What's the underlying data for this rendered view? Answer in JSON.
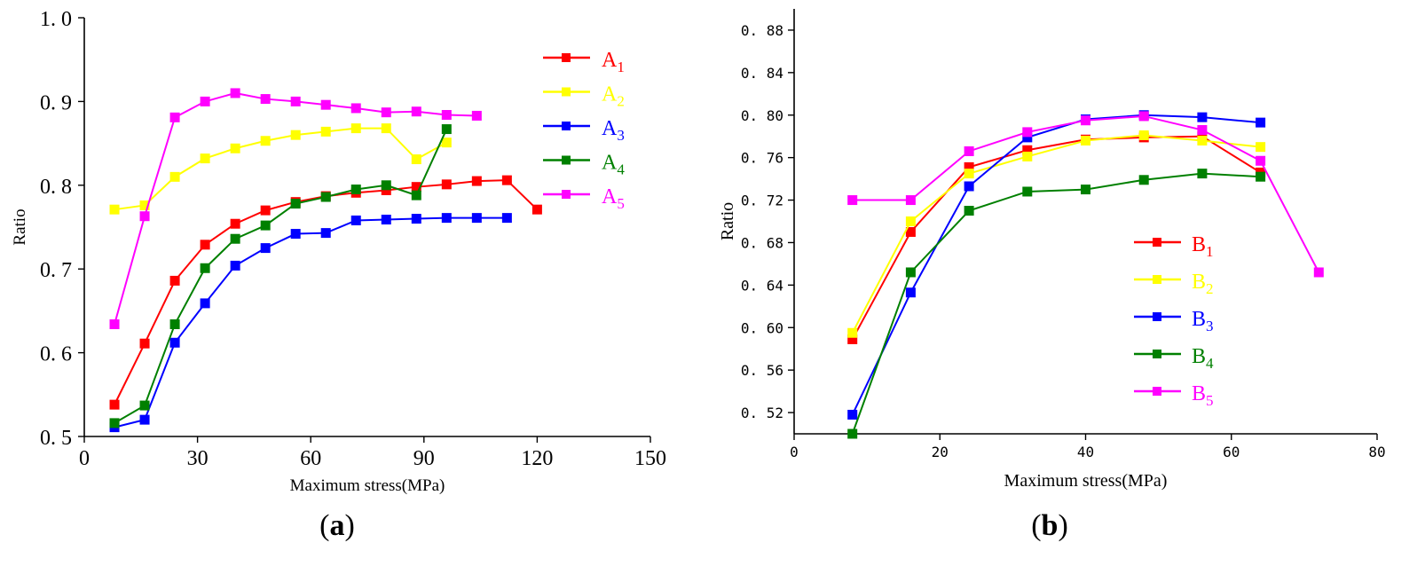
{
  "chart_data": [
    {
      "type": "line",
      "panel_label": "(a)",
      "panel_label_parts": {
        "open": "(",
        "letter": "a",
        "close": ")"
      },
      "xlabel": "Maximum stress(MPa)",
      "ylabel": "Ratio",
      "xlim": [
        0,
        150
      ],
      "ylim": [
        0.5,
        1.0
      ],
      "xticks": [
        0,
        30,
        60,
        90,
        120,
        150
      ],
      "xtick_labels": [
        "0",
        "30",
        "60",
        "90",
        "120",
        "150"
      ],
      "yticks": [
        0.5,
        0.6,
        0.7,
        0.8,
        0.9,
        1.0
      ],
      "ytick_labels": [
        "0. 5",
        "0. 6",
        "0. 7",
        "0. 8",
        "0. 9",
        "1. 0"
      ],
      "grid": false,
      "legend_position": "top-right",
      "series": [
        {
          "name": "A1",
          "label": "A",
          "sub": "1",
          "color": "#ff0000",
          "x": [
            8,
            16,
            24,
            32,
            40,
            48,
            56,
            64,
            72,
            80,
            88,
            96,
            104,
            112,
            120
          ],
          "y": [
            0.538,
            0.611,
            0.686,
            0.729,
            0.754,
            0.77,
            0.78,
            0.787,
            0.791,
            0.794,
            0.798,
            0.801,
            0.805,
            0.806,
            0.771
          ]
        },
        {
          "name": "A2",
          "label": "A",
          "sub": "2",
          "color": "#ffff00",
          "x": [
            8,
            16,
            24,
            32,
            40,
            48,
            56,
            64,
            72,
            80,
            88,
            96
          ],
          "y": [
            0.771,
            0.776,
            0.81,
            0.832,
            0.844,
            0.853,
            0.86,
            0.864,
            0.868,
            0.868,
            0.831,
            0.851
          ]
        },
        {
          "name": "A3",
          "label": "A",
          "sub": "3",
          "color": "#0000ff",
          "x": [
            8,
            16,
            24,
            32,
            40,
            48,
            56,
            64,
            72,
            80,
            88,
            96,
            104,
            112
          ],
          "y": [
            0.511,
            0.52,
            0.612,
            0.659,
            0.704,
            0.725,
            0.742,
            0.743,
            0.758,
            0.759,
            0.76,
            0.761,
            0.761,
            0.761
          ]
        },
        {
          "name": "A4",
          "label": "A",
          "sub": "4",
          "color": "#008000",
          "x": [
            8,
            16,
            24,
            32,
            40,
            48,
            56,
            64,
            72,
            80,
            88,
            96
          ],
          "y": [
            0.516,
            0.537,
            0.634,
            0.701,
            0.736,
            0.752,
            0.778,
            0.786,
            0.795,
            0.8,
            0.788,
            0.867
          ]
        },
        {
          "name": "A5",
          "label": "A",
          "sub": "5",
          "color": "#ff00ff",
          "x": [
            8,
            16,
            24,
            32,
            40,
            48,
            56,
            64,
            72,
            80,
            88,
            96,
            104
          ],
          "y": [
            0.634,
            0.763,
            0.881,
            0.9,
            0.91,
            0.903,
            0.9,
            0.896,
            0.892,
            0.887,
            0.888,
            0.884,
            0.883
          ]
        }
      ]
    },
    {
      "type": "line",
      "panel_label": "(b)",
      "panel_label_parts": {
        "open": "(",
        "letter": "b",
        "close": ")"
      },
      "xlabel": "Maximum stress(MPa)",
      "ylabel": "Ratio",
      "xlim": [
        0,
        80
      ],
      "ylim": [
        0.5,
        0.9
      ],
      "xticks": [
        0,
        20,
        40,
        60,
        80
      ],
      "xtick_labels": [
        "0",
        "20",
        "40",
        "60",
        "80"
      ],
      "yticks": [
        0.52,
        0.56,
        0.6,
        0.64,
        0.68,
        0.72,
        0.76,
        0.8,
        0.84,
        0.88
      ],
      "ytick_labels": [
        "0. 52",
        "0. 56",
        "0. 60",
        "0. 64",
        "0. 68",
        "0. 72",
        "0. 76",
        "0. 80",
        "0. 84",
        "0. 88"
      ],
      "grid": false,
      "legend_position": "center-right",
      "series": [
        {
          "name": "B1",
          "label": "B",
          "sub": "1",
          "color": "#ff0000",
          "x": [
            8,
            16,
            24,
            32,
            40,
            48,
            56,
            64
          ],
          "y": [
            0.589,
            0.69,
            0.751,
            0.767,
            0.777,
            0.779,
            0.78,
            0.746
          ]
        },
        {
          "name": "B2",
          "label": "B",
          "sub": "2",
          "color": "#ffff00",
          "x": [
            8,
            16,
            24,
            32,
            40,
            48,
            56,
            64
          ],
          "y": [
            0.595,
            0.7,
            0.745,
            0.761,
            0.776,
            0.781,
            0.776,
            0.77
          ]
        },
        {
          "name": "B3",
          "label": "B",
          "sub": "3",
          "color": "#0000ff",
          "x": [
            8,
            16,
            24,
            32,
            40,
            48,
            56,
            64
          ],
          "y": [
            0.518,
            0.633,
            0.733,
            0.779,
            0.796,
            0.8,
            0.798,
            0.793
          ]
        },
        {
          "name": "B4",
          "label": "B",
          "sub": "4",
          "color": "#008000",
          "x": [
            8,
            16,
            24,
            32,
            40,
            48,
            56,
            64
          ],
          "y": [
            0.5,
            0.652,
            0.71,
            0.728,
            0.73,
            0.739,
            0.745,
            0.742
          ]
        },
        {
          "name": "B5",
          "label": "B",
          "sub": "5",
          "color": "#ff00ff",
          "x": [
            8,
            16,
            24,
            32,
            40,
            48,
            56,
            64,
            72
          ],
          "y": [
            0.72,
            0.72,
            0.766,
            0.784,
            0.795,
            0.799,
            0.786,
            0.757,
            0.652
          ]
        }
      ]
    }
  ]
}
